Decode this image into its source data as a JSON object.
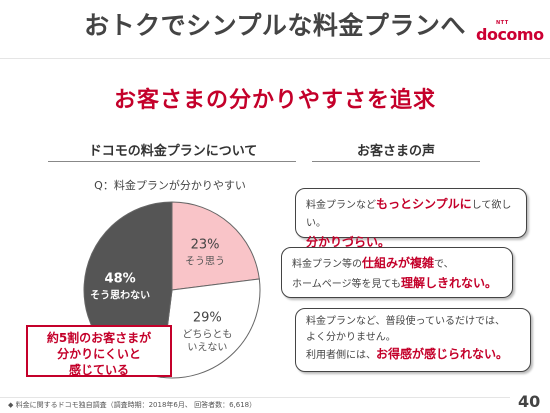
{
  "slide": {
    "title": "おトクでシンプルな料金プランへ",
    "subtitle": "お客さまの分かりやすさを追求",
    "page_number": "40"
  },
  "logo": {
    "ntt": "NTT",
    "brand": "docomo"
  },
  "left": {
    "heading": "ドコモの料金プランについて",
    "question": "Q：料金プランが分かりやすい",
    "callout_lines": [
      "約5割のお客さまが",
      "分かりにくいと",
      "感じている"
    ]
  },
  "right": {
    "heading": "お客さまの声",
    "bubbles": [
      {
        "pre": "料金プランなど",
        "em1": "もっとシンプルに",
        "mid": "して欲しい。",
        "em2": "分かりづらい。"
      },
      {
        "pre": "料金プラン等の",
        "em1": "仕組みが複雑",
        "mid": "で、",
        "line2_pre": "ホームページ等を見ても",
        "em2": "理解しきれない。"
      },
      {
        "line1": "料金プランなど、普段使っているだけでは、",
        "line2": "よく分かりません。",
        "line3_pre": "利用者側には、",
        "em": "お得感が感じられない。"
      }
    ]
  },
  "chart_data": {
    "type": "pie",
    "title": "Q：料金プランが分かりやすい",
    "slices": [
      {
        "label": "そう思う",
        "value": 23,
        "color": "#f9c4c8"
      },
      {
        "label": "どちらともいえない",
        "value": 29,
        "color": "#ffffff"
      },
      {
        "label": "そう思わない",
        "value": 48,
        "color": "#555555"
      }
    ],
    "display": {
      "slice_labels": [
        {
          "pct": "23%",
          "lines": [
            "そう思う"
          ]
        },
        {
          "pct": "29%",
          "lines": [
            "どちらとも",
            "いえない"
          ]
        },
        {
          "pct": "48%",
          "lines": [
            "そう思わない"
          ]
        }
      ]
    }
  },
  "footnote": "◆ 料金に関するドコモ独自調査（調査時期：2018年6月、 回答者数：6,618）"
}
